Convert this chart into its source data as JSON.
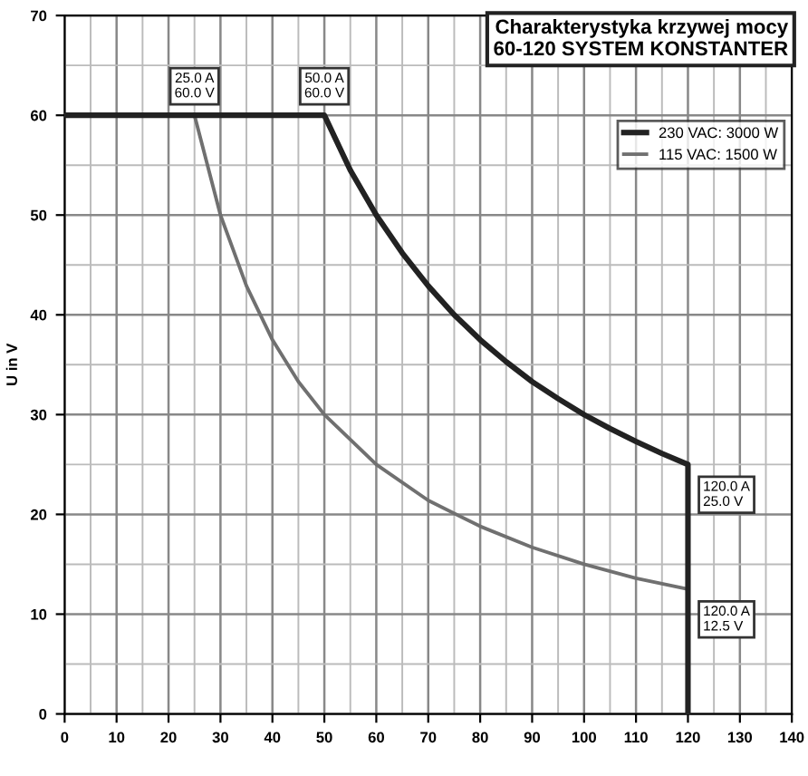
{
  "chart_data": {
    "type": "line",
    "title": "Charakterystyka krzywej mocy",
    "subtitle": "60-120 SYSTEM KONSTANTER",
    "ylabel": "U in V",
    "series": [
      {
        "name": "230 VAC: 3000 W",
        "color": "#222222",
        "x": [
          0,
          50,
          55,
          60,
          65,
          70,
          75,
          80,
          85,
          90,
          95,
          100,
          105,
          110,
          115,
          120,
          120
        ],
        "values": [
          60,
          60,
          54.5,
          50,
          46.2,
          42.9,
          40,
          37.5,
          35.3,
          33.3,
          31.6,
          30,
          28.6,
          27.3,
          26.1,
          25,
          0
        ]
      },
      {
        "name": "115 VAC: 1500 W",
        "color": "#707070",
        "x": [
          0,
          25,
          30,
          35,
          40,
          45,
          50,
          60,
          70,
          80,
          90,
          100,
          110,
          120,
          120
        ],
        "values": [
          60,
          60,
          50,
          42.9,
          37.5,
          33.3,
          30,
          25,
          21.4,
          18.8,
          16.7,
          15,
          13.6,
          12.5,
          0
        ]
      }
    ],
    "annotations": [
      {
        "text": "25.0 A\n60.0 V",
        "x": 25,
        "y": 60
      },
      {
        "text": "50.0 A\n60.0 V",
        "x": 50,
        "y": 60
      },
      {
        "text": "120.0 A\n25.0 V",
        "x": 120,
        "y": 25
      },
      {
        "text": "120.0 A\n12.5 V",
        "x": 120,
        "y": 12.5
      }
    ],
    "xlim": [
      0,
      140
    ],
    "xticks": [
      0,
      10,
      20,
      30,
      40,
      50,
      60,
      70,
      80,
      90,
      100,
      110,
      120,
      130,
      140
    ],
    "ylim": [
      0,
      70
    ],
    "yticks": [
      0,
      10,
      20,
      30,
      40,
      50,
      60,
      70
    ],
    "grid": true,
    "legend": "top right",
    "marker": "none",
    "line_style": "solid"
  }
}
